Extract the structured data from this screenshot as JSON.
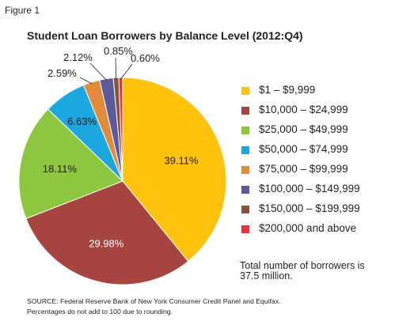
{
  "figure_label": "Figure 1",
  "chart_data": {
    "type": "pie",
    "title": "Student Loan Borrowers by Balance Level  (2012:Q4)",
    "categories": [
      "$1 – $9,999",
      "$10,000 – $24,999",
      "$25,000 – $49,999",
      "$50,000 – $74,999",
      "$75,000 – $99,999",
      "$100,000 – $149,999",
      "$150,000 – $199,999",
      "$200,000 and above"
    ],
    "values": [
      39.11,
      29.98,
      18.11,
      6.63,
      2.59,
      2.12,
      0.85,
      0.6
    ],
    "labels": [
      "39.11%",
      "29.98%",
      "18.11%",
      "6.63%",
      "2.59%",
      "2.12%",
      "0.85%",
      "0.60%"
    ],
    "colors": [
      "#ffc20e",
      "#a6443f",
      "#8dc63f",
      "#1ca7df",
      "#e28b3d",
      "#5d5a9c",
      "#82573b",
      "#ed3237"
    ],
    "legend_position": "right",
    "start": "12 o'clock, clockwise"
  },
  "note": "Total number of borrowers is 37.5 million.",
  "source_lines": [
    "SOURCE: Federal Reserve Bank of New York Consumer Credit Panel and Equifax.",
    "Percentages do not add to 100 due to rounding."
  ]
}
